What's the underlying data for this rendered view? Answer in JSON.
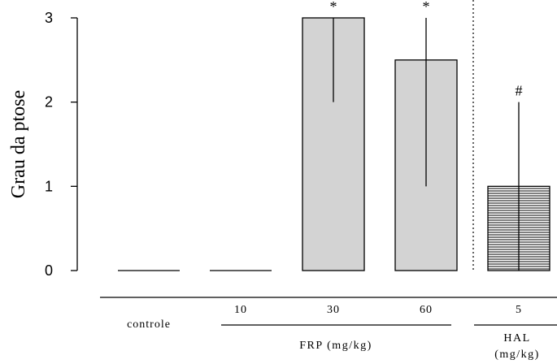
{
  "chart_data": {
    "type": "bar",
    "title": "",
    "ylabel": "Grau da ptose",
    "xlabel": "",
    "ylim": [
      0,
      3
    ],
    "yticks": [
      0,
      1,
      2,
      3
    ],
    "grid": false,
    "colors": {
      "bar": "#d3d3d3",
      "hal_hatch": "#000000",
      "axis": "#000000"
    },
    "categories": [
      {
        "label": "controle",
        "value": 0,
        "error_low": 0,
        "error_high": 0,
        "annotation": "",
        "fill": "plain"
      },
      {
        "label": "10",
        "value": 0,
        "error_low": 0,
        "error_high": 0,
        "annotation": "",
        "fill": "plain"
      },
      {
        "label": "30",
        "value": 3,
        "error_low": 2,
        "error_high": 3,
        "annotation": "*",
        "fill": "gray"
      },
      {
        "label": "60",
        "value": 2.5,
        "error_low": 1,
        "error_high": 3,
        "annotation": "*",
        "fill": "gray"
      },
      {
        "label": "5",
        "value": 1,
        "error_low": 0,
        "error_high": 2,
        "annotation": "#",
        "fill": "hatched"
      }
    ],
    "groups": [
      {
        "label": "FRP (mg/kg)",
        "lines": [
          "FRP (mg/kg)"
        ]
      },
      {
        "label": "HAL (mg/kg)",
        "lines": [
          "HAL",
          "(mg/kg)"
        ]
      }
    ]
  }
}
